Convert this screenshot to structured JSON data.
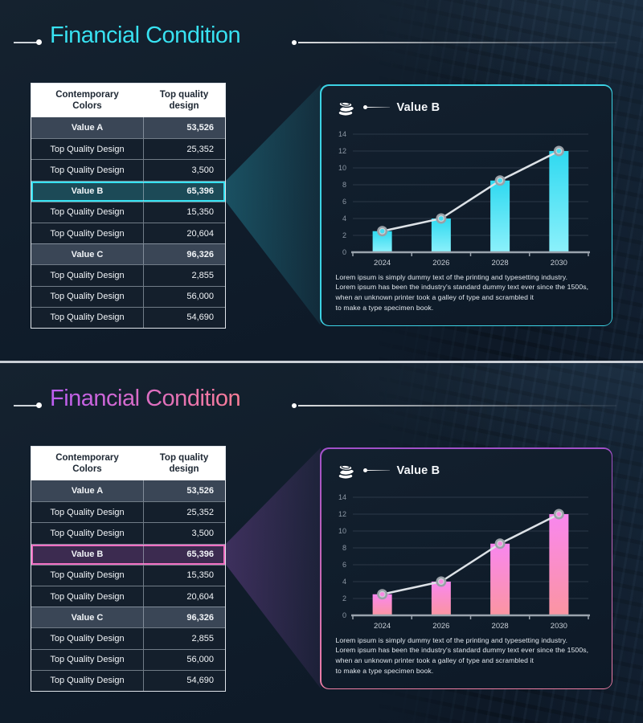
{
  "slides": [
    {
      "title": "Financial Condition",
      "theme": {
        "accent": "#38e2f2",
        "title_color_start": "#38e2f2",
        "title_color_end": "#38e2f2",
        "bar_gradient_top": "#2fd9f0",
        "bar_gradient_bottom": "#8cf1fb",
        "marker_center": "#45dff2",
        "highlight_row_bg": "#1c4a57",
        "highlight_row_border": "#36e2f2",
        "beam_color_start": "rgba(47,190,214,0.32)",
        "beam_color_end": "rgba(47,190,214,0.10)",
        "panel_border_top": "#3cd2e4",
        "panel_border_bottom": "#3cd2e4"
      }
    },
    {
      "title": "Financial Condition",
      "theme": {
        "accent": "#ee6fbe",
        "title_color_start": "#bb5df2",
        "title_color_end": "#fb7d96",
        "bar_gradient_top": "#f987ef",
        "bar_gradient_bottom": "#fb95a1",
        "marker_center": "#f98ae2",
        "highlight_row_bg": "#3c2b50",
        "highlight_row_border": "#f06fc2",
        "beam_color_start": "rgba(150,85,190,0.34)",
        "beam_color_end": "rgba(150,85,190,0.10)",
        "panel_border_top": "#a050c8",
        "panel_border_bottom": "#ef7fa5"
      }
    }
  ],
  "table": {
    "headers": [
      "Contemporary Colors",
      "Top quality design"
    ],
    "rows": [
      {
        "label": "Value A",
        "value": "53,526",
        "type": "section"
      },
      {
        "label": "Top Quality Design",
        "value": "25,352",
        "type": "normal"
      },
      {
        "label": "Top Quality Design",
        "value": "3,500",
        "type": "normal"
      },
      {
        "label": "Value B",
        "value": "65,396",
        "type": "highlight"
      },
      {
        "label": "Top Quality Design",
        "value": "15,350",
        "type": "normal"
      },
      {
        "label": "Top Quality Design",
        "value": "20,604",
        "type": "normal"
      },
      {
        "label": "Value C",
        "value": "96,326",
        "type": "section"
      },
      {
        "label": "Top Quality Design",
        "value": "2,855",
        "type": "normal"
      },
      {
        "label": "Top Quality Design",
        "value": "56,000",
        "type": "normal"
      },
      {
        "label": "Top Quality Design",
        "value": "54,690",
        "type": "normal"
      }
    ]
  },
  "panel": {
    "icon": "coins-icon",
    "legend_label": "Value B",
    "description": "Lorem ipsum is simply dummy text of the printing and typesetting industry.\nLorem ipsum has been the industry's standard dummy text ever since the 1500s,\nwhen an unknown printer took a galley of type and scrambled it\nto make a type specimen book."
  },
  "chart_data": {
    "type": "bar",
    "title": "Value B",
    "categories": [
      "2024",
      "2026",
      "2028",
      "2030"
    ],
    "series": [
      {
        "name": "Value B bars",
        "type": "bar",
        "values": [
          2.5,
          4,
          8.5,
          12
        ]
      },
      {
        "name": "Value B trend",
        "type": "line",
        "values": [
          2.5,
          4,
          8.5,
          12
        ]
      }
    ],
    "xlabel": "",
    "ylabel": "",
    "ylim": [
      0,
      14
    ],
    "ytick_step": 2,
    "grid": "horizontal",
    "legend_position": "top-left"
  }
}
